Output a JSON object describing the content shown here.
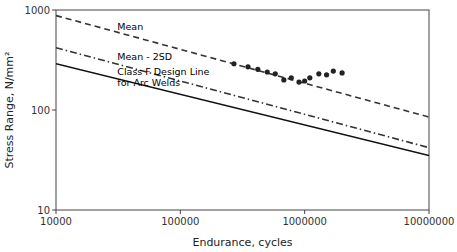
{
  "chart_data": {
    "type": "line",
    "log": true,
    "grid": false,
    "xlabel": "Endurance, cycles",
    "ylabel": "Stress Range, N/mm²",
    "xlim": [
      10000,
      10000000
    ],
    "ylim": [
      10,
      1000
    ],
    "xticks": [
      10000,
      100000,
      1000000,
      10000000
    ],
    "yticks": [
      10,
      100,
      1000
    ],
    "series": [
      {
        "type": "line",
        "line_style": "dashed",
        "color": "#333333",
        "x": [
          10000,
          10000000
        ],
        "values": [
          880,
          85
        ]
      },
      {
        "type": "line",
        "line_style": "dashdot",
        "color": "#333333",
        "x": [
          10000,
          10000000
        ],
        "values": [
          420,
          42
        ]
      },
      {
        "type": "line",
        "line_style": "solid",
        "color": "#111111",
        "x": [
          10000,
          10000000
        ],
        "values": [
          290,
          35
        ]
      },
      {
        "type": "scatter",
        "marker": "dot",
        "color": "#222222",
        "x": [
          270000,
          350000,
          420000,
          500000,
          580000,
          680000,
          780000,
          900000,
          1000000,
          1100000,
          1300000,
          1500000,
          1700000,
          2000000
        ],
        "values": [
          290,
          270,
          255,
          240,
          230,
          200,
          210,
          190,
          195,
          210,
          230,
          225,
          245,
          235
        ]
      }
    ],
    "annotations": [
      {
        "text": "Mean",
        "x": 30000,
        "y": 680
      },
      {
        "text": "Mean - 2SD",
        "x": 30000,
        "y": 340
      },
      {
        "text": "Class F Design Line\nfor Arc Welds",
        "x": 30000,
        "y": 215
      }
    ]
  }
}
